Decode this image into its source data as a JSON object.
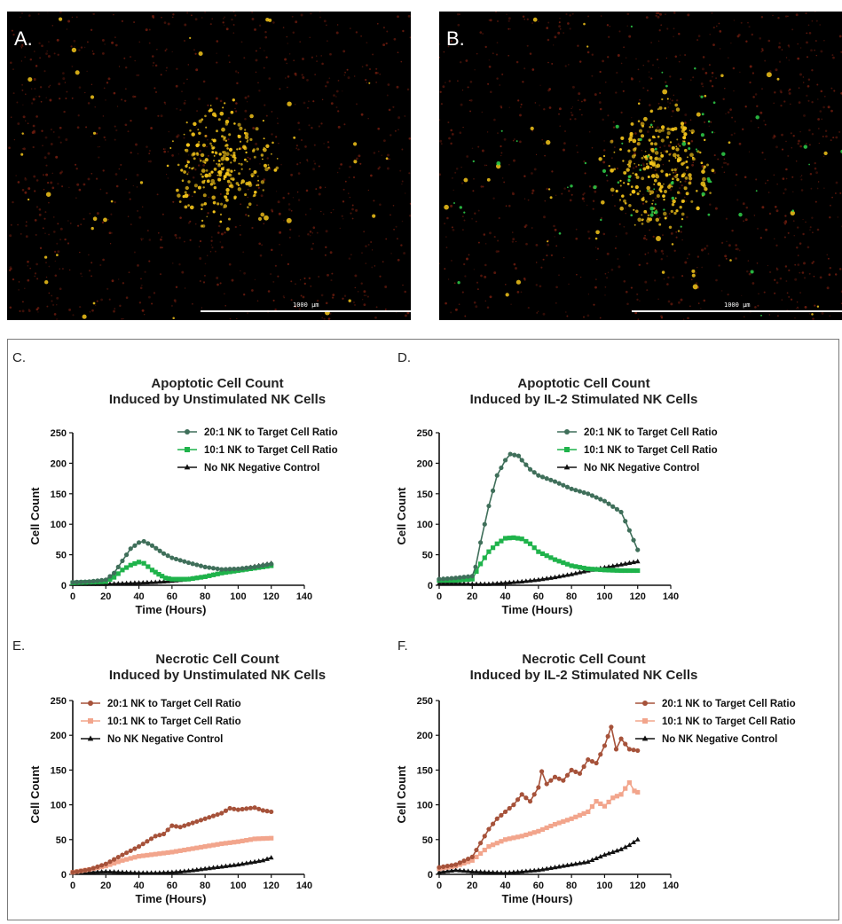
{
  "micrographs": [
    {
      "label": "A.",
      "scale_bar": "1000 µm"
    },
    {
      "label": "B.",
      "scale_bar": "1000 µm"
    }
  ],
  "colors": {
    "apoptotic_20": "#3f6f5a",
    "apoptotic_10": "#1fb34b",
    "necrotic_20": "#a6523a",
    "necrotic_10": "#f2a58c",
    "control": "#111111",
    "micro_red": "#7a1f10",
    "micro_yellow": "#f5c51a",
    "micro_green": "#2fd14a"
  },
  "chart_data": [
    {
      "panel": "C.",
      "type": "line",
      "title": [
        "Apoptotic Cell Count",
        "Induced by Unstimulated NK Cells"
      ],
      "xlabel": "Time (Hours)",
      "ylabel": "Cell Count",
      "xlim": [
        0,
        140
      ],
      "ylim": [
        0,
        250
      ],
      "xticks": [
        "0",
        "20",
        "40",
        "60",
        "80",
        "100",
        "120",
        "140"
      ],
      "yticks": [
        "0",
        "50",
        "100",
        "150",
        "200",
        "250"
      ],
      "legend_position": "top-right",
      "series": [
        {
          "name": "20:1 NK to Target Cell Ratio",
          "marker": "circle",
          "color_key": "apoptotic_20",
          "points": [
            [
              0,
              5
            ],
            [
              10,
              6
            ],
            [
              20,
              9
            ],
            [
              25,
              20
            ],
            [
              30,
              40
            ],
            [
              35,
              60
            ],
            [
              40,
              70
            ],
            [
              43,
              72
            ],
            [
              48,
              65
            ],
            [
              55,
              52
            ],
            [
              60,
              45
            ],
            [
              70,
              37
            ],
            [
              80,
              30
            ],
            [
              90,
              26
            ],
            [
              100,
              27
            ],
            [
              110,
              30
            ],
            [
              120,
              35
            ]
          ]
        },
        {
          "name": "10:1 NK to Target Cell Ratio",
          "marker": "square",
          "color_key": "apoptotic_10",
          "points": [
            [
              0,
              4
            ],
            [
              10,
              5
            ],
            [
              20,
              6
            ],
            [
              25,
              13
            ],
            [
              30,
              25
            ],
            [
              35,
              33
            ],
            [
              40,
              38
            ],
            [
              43,
              36
            ],
            [
              48,
              25
            ],
            [
              52,
              18
            ],
            [
              56,
              12
            ],
            [
              60,
              10
            ],
            [
              70,
              10
            ],
            [
              80,
              14
            ],
            [
              90,
              20
            ],
            [
              100,
              24
            ],
            [
              110,
              28
            ],
            [
              120,
              32
            ]
          ]
        },
        {
          "name": "No NK Negative Control",
          "marker": "triangle",
          "color_key": "control",
          "points": [
            [
              0,
              2
            ],
            [
              10,
              2
            ],
            [
              20,
              2
            ],
            [
              30,
              3
            ],
            [
              40,
              4
            ],
            [
              50,
              5
            ],
            [
              60,
              7
            ],
            [
              70,
              10
            ],
            [
              80,
              14
            ],
            [
              90,
              20
            ],
            [
              100,
              25
            ],
            [
              110,
              31
            ],
            [
              120,
              36
            ]
          ]
        }
      ]
    },
    {
      "panel": "D.",
      "type": "line",
      "title": [
        "Apoptotic Cell Count",
        "Induced by IL-2 Stimulated NK Cells"
      ],
      "xlabel": "Time (Hours)",
      "ylabel": "Cell Count",
      "xlim": [
        0,
        140
      ],
      "ylim": [
        0,
        250
      ],
      "xticks": [
        "0",
        "20",
        "40",
        "60",
        "80",
        "100",
        "120",
        "140"
      ],
      "yticks": [
        "0",
        "50",
        "100",
        "150",
        "200",
        "250"
      ],
      "legend_position": "top-right",
      "series": [
        {
          "name": "20:1 NK to Target Cell Ratio",
          "marker": "circle",
          "color_key": "apoptotic_20",
          "points": [
            [
              0,
              10
            ],
            [
              10,
              12
            ],
            [
              20,
              15
            ],
            [
              22,
              30
            ],
            [
              25,
              70
            ],
            [
              30,
              130
            ],
            [
              35,
              180
            ],
            [
              40,
              205
            ],
            [
              43,
              215
            ],
            [
              48,
              212
            ],
            [
              50,
              205
            ],
            [
              55,
              190
            ],
            [
              60,
              180
            ],
            [
              70,
              170
            ],
            [
              80,
              158
            ],
            [
              90,
              150
            ],
            [
              100,
              138
            ],
            [
              110,
              120
            ],
            [
              115,
              90
            ],
            [
              120,
              58
            ]
          ]
        },
        {
          "name": "10:1 NK to Target Cell Ratio",
          "marker": "square",
          "color_key": "apoptotic_10",
          "points": [
            [
              0,
              8
            ],
            [
              10,
              8
            ],
            [
              20,
              10
            ],
            [
              25,
              35
            ],
            [
              30,
              55
            ],
            [
              35,
              68
            ],
            [
              40,
              77
            ],
            [
              45,
              78
            ],
            [
              50,
              76
            ],
            [
              55,
              68
            ],
            [
              60,
              55
            ],
            [
              70,
              42
            ],
            [
              80,
              32
            ],
            [
              90,
              27
            ],
            [
              100,
              25
            ],
            [
              110,
              24
            ],
            [
              120,
              24
            ]
          ]
        },
        {
          "name": "No NK Negative Control",
          "marker": "triangle",
          "color_key": "control",
          "points": [
            [
              0,
              3
            ],
            [
              10,
              3
            ],
            [
              20,
              2
            ],
            [
              30,
              2
            ],
            [
              40,
              4
            ],
            [
              50,
              6
            ],
            [
              60,
              9
            ],
            [
              70,
              13
            ],
            [
              80,
              18
            ],
            [
              90,
              24
            ],
            [
              100,
              29
            ],
            [
              110,
              34
            ],
            [
              120,
              39
            ]
          ]
        }
      ]
    },
    {
      "panel": "E.",
      "type": "line",
      "title": [
        "Necrotic Cell Count",
        "Induced by Unstimulated NK Cells"
      ],
      "xlabel": "Time (Hours)",
      "ylabel": "Cell Count",
      "xlim": [
        0,
        140
      ],
      "ylim": [
        0,
        250
      ],
      "xticks": [
        "0",
        "20",
        "40",
        "60",
        "80",
        "100",
        "120",
        "140"
      ],
      "yticks": [
        "0",
        "50",
        "100",
        "150",
        "200",
        "250"
      ],
      "legend_position": "top-left",
      "series": [
        {
          "name": "20:1 NK to Target Cell Ratio",
          "marker": "circle",
          "color_key": "necrotic_20",
          "points": [
            [
              0,
              3
            ],
            [
              10,
              7
            ],
            [
              20,
              15
            ],
            [
              30,
              28
            ],
            [
              40,
              40
            ],
            [
              50,
              55
            ],
            [
              55,
              58
            ],
            [
              60,
              70
            ],
            [
              65,
              68
            ],
            [
              70,
              72
            ],
            [
              80,
              80
            ],
            [
              90,
              88
            ],
            [
              95,
              95
            ],
            [
              100,
              93
            ],
            [
              110,
              96
            ],
            [
              115,
              92
            ],
            [
              120,
              90
            ]
          ]
        },
        {
          "name": "10:1 NK to Target Cell Ratio",
          "marker": "square",
          "color_key": "necrotic_10",
          "points": [
            [
              0,
              3
            ],
            [
              10,
              7
            ],
            [
              20,
              12
            ],
            [
              30,
              20
            ],
            [
              40,
              26
            ],
            [
              50,
              29
            ],
            [
              60,
              32
            ],
            [
              70,
              36
            ],
            [
              80,
              40
            ],
            [
              90,
              44
            ],
            [
              100,
              47
            ],
            [
              110,
              51
            ],
            [
              120,
              52
            ]
          ]
        },
        {
          "name": "No NK Negative Control",
          "marker": "triangle",
          "color_key": "control",
          "points": [
            [
              0,
              2
            ],
            [
              10,
              3
            ],
            [
              20,
              4
            ],
            [
              30,
              3
            ],
            [
              40,
              2
            ],
            [
              50,
              2
            ],
            [
              60,
              3
            ],
            [
              70,
              5
            ],
            [
              80,
              8
            ],
            [
              90,
              11
            ],
            [
              100,
              14
            ],
            [
              110,
              18
            ],
            [
              115,
              20
            ],
            [
              120,
              24
            ]
          ]
        }
      ]
    },
    {
      "panel": "F.",
      "type": "line",
      "title": [
        "Necrotic Cell Count",
        "Induced by IL-2 Stimulated NK Cells"
      ],
      "xlabel": "Time (Hours)",
      "ylabel": "Cell Count",
      "xlim": [
        0,
        140
      ],
      "ylim": [
        0,
        250
      ],
      "xticks": [
        "0",
        "20",
        "40",
        "60",
        "80",
        "100",
        "120",
        "140"
      ],
      "yticks": [
        "0",
        "50",
        "100",
        "150",
        "200",
        "250"
      ],
      "legend_position": "top-right",
      "series": [
        {
          "name": "20:1 NK to Target Cell Ratio",
          "marker": "circle",
          "color_key": "necrotic_20",
          "points": [
            [
              0,
              10
            ],
            [
              10,
              14
            ],
            [
              20,
              25
            ],
            [
              25,
              45
            ],
            [
              30,
              65
            ],
            [
              35,
              80
            ],
            [
              40,
              90
            ],
            [
              45,
              100
            ],
            [
              50,
              115
            ],
            [
              55,
              105
            ],
            [
              60,
              125
            ],
            [
              62,
              148
            ],
            [
              65,
              130
            ],
            [
              70,
              140
            ],
            [
              75,
              135
            ],
            [
              80,
              150
            ],
            [
              85,
              145
            ],
            [
              90,
              165
            ],
            [
              95,
              160
            ],
            [
              100,
              185
            ],
            [
              104,
              212
            ],
            [
              107,
              180
            ],
            [
              110,
              195
            ],
            [
              115,
              180
            ],
            [
              120,
              178
            ]
          ]
        },
        {
          "name": "10:1 NK to Target Cell Ratio",
          "marker": "square",
          "color_key": "necrotic_10",
          "points": [
            [
              0,
              8
            ],
            [
              10,
              12
            ],
            [
              20,
              20
            ],
            [
              30,
              40
            ],
            [
              40,
              50
            ],
            [
              50,
              55
            ],
            [
              60,
              62
            ],
            [
              70,
              72
            ],
            [
              80,
              80
            ],
            [
              90,
              90
            ],
            [
              95,
              105
            ],
            [
              100,
              98
            ],
            [
              105,
              110
            ],
            [
              110,
              115
            ],
            [
              115,
              132
            ],
            [
              118,
              120
            ],
            [
              120,
              118
            ]
          ]
        },
        {
          "name": "No NK Negative Control",
          "marker": "triangle",
          "color_key": "control",
          "points": [
            [
              0,
              3
            ],
            [
              10,
              6
            ],
            [
              20,
              4
            ],
            [
              30,
              3
            ],
            [
              40,
              2
            ],
            [
              50,
              4
            ],
            [
              60,
              6
            ],
            [
              70,
              10
            ],
            [
              80,
              14
            ],
            [
              90,
              18
            ],
            [
              100,
              28
            ],
            [
              105,
              32
            ],
            [
              110,
              36
            ],
            [
              115,
              42
            ],
            [
              120,
              50
            ]
          ]
        }
      ]
    }
  ]
}
